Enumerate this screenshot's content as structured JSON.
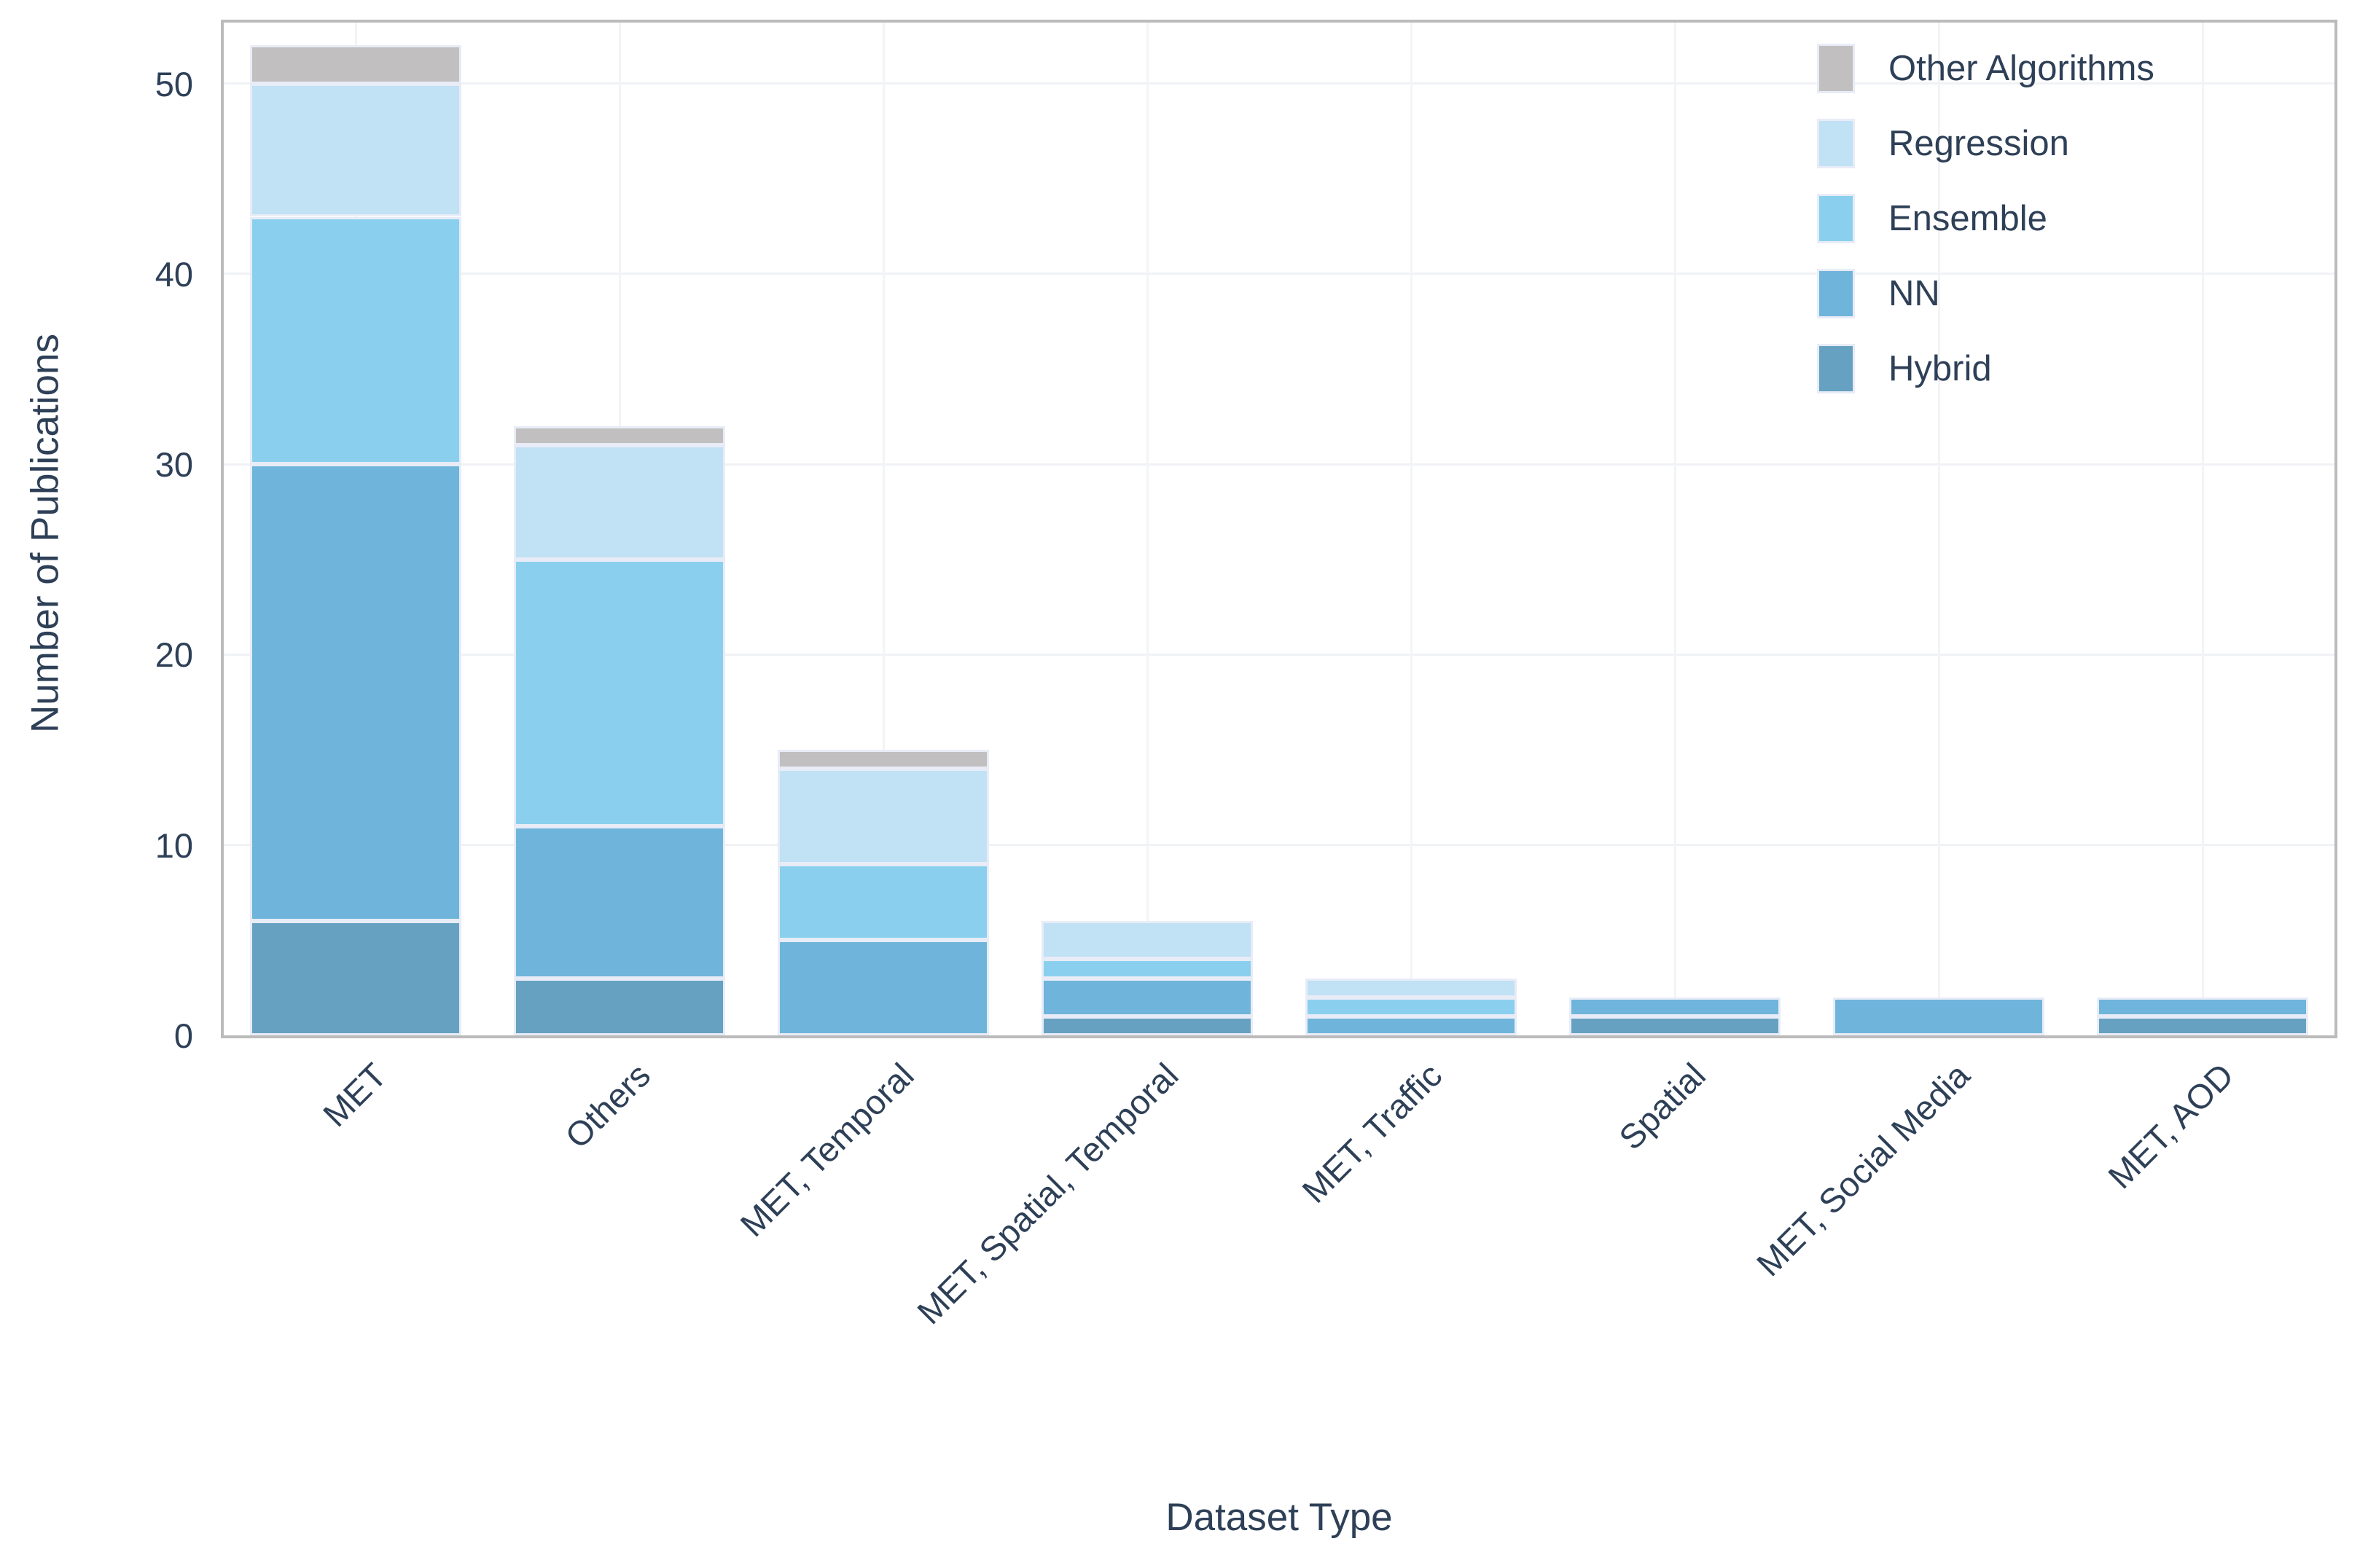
{
  "chart_data": {
    "type": "bar",
    "stacked": true,
    "title": "",
    "xlabel": "Dataset Type",
    "ylabel": "Number of Publications",
    "categories": [
      "MET",
      "Others",
      "MET, Temporal",
      "MET, Spatial, Temporal",
      "MET, Traffic",
      "Spatial",
      "MET, Social Media",
      "MET, AOD"
    ],
    "series": [
      {
        "name": "Hybrid",
        "color": "#66a1c1",
        "values": [
          6,
          3,
          0,
          1,
          0,
          1,
          0,
          1
        ]
      },
      {
        "name": "NN",
        "color": "#6fb4da",
        "values": [
          24,
          8,
          5,
          2,
          1,
          1,
          2,
          1
        ]
      },
      {
        "name": "Ensemble",
        "color": "#8ad0ee",
        "values": [
          13,
          14,
          4,
          1,
          1,
          0,
          0,
          0
        ]
      },
      {
        "name": "Regression",
        "color": "#c1e1f4",
        "values": [
          7,
          6,
          5,
          2,
          1,
          0,
          0,
          0
        ]
      },
      {
        "name": "Other Algorithms",
        "color": "#c1bfc0",
        "values": [
          2,
          1,
          1,
          0,
          0,
          0,
          0,
          0
        ]
      }
    ],
    "totals": [
      52,
      32,
      15,
      6,
      3,
      2,
      2,
      2
    ],
    "y_ticks": [
      "0",
      "10",
      "20",
      "30",
      "40",
      "50"
    ],
    "ylim": [
      0,
      53.2
    ],
    "grid": true,
    "legend_position": "top-right",
    "legend_order": [
      "Other Algorithms",
      "Regression",
      "Ensemble",
      "NN",
      "Hybrid"
    ]
  },
  "colors": {
    "text": "#2e4057",
    "frame": "#bbbbbc",
    "gridline": "#f0f2f5",
    "bar_edge": "#e8ecf7",
    "background": "#ffffff"
  }
}
